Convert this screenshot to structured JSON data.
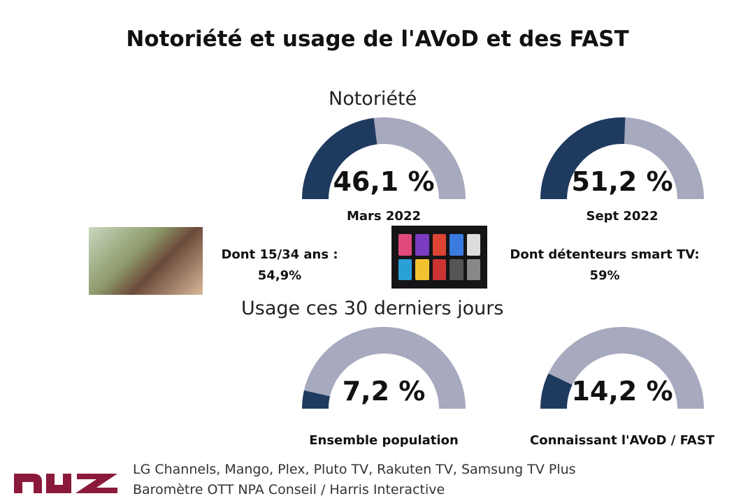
{
  "title": "Notoriété et usage de l'AVoD et des FAST",
  "sections": {
    "notoriete": "Notoriété",
    "usage": "Usage ces 30 derniers jours"
  },
  "colors": {
    "filled": "#1f3a5f",
    "empty": "#a7a9be",
    "brand": "#8b1a3a"
  },
  "chart_data": {
    "type": "gauge",
    "range": [
      0,
      100
    ],
    "gauges": [
      {
        "value": 46.1,
        "value_label": "46,1 %",
        "label": "Mars 2022",
        "group": "Notoriété"
      },
      {
        "value": 51.2,
        "value_label": "51,2 %",
        "label": "Sept 2022",
        "group": "Notoriété"
      },
      {
        "value": 7.2,
        "value_label": "7,2 %",
        "label": "Ensemble population",
        "group": "Usage ces 30 derniers jours"
      },
      {
        "value": 14.2,
        "value_label": "14,2 %",
        "label": "Connaissant l'AVoD / FAST",
        "group": "Usage ces 30 derniers jours"
      }
    ]
  },
  "callouts": {
    "young": {
      "line1": "Dont 15/34 ans :",
      "line2": "54,9%"
    },
    "smarttv": {
      "line1": "Dont détenteurs smart TV:",
      "line2": "59%"
    }
  },
  "footer": {
    "logo": "npa",
    "line1": "LG Channels, Mango, Plex, Pluto TV, Rakuten TV, Samsung TV Plus",
    "line2": "Baromètre OTT NPA Conseil / Harris Interactive"
  }
}
